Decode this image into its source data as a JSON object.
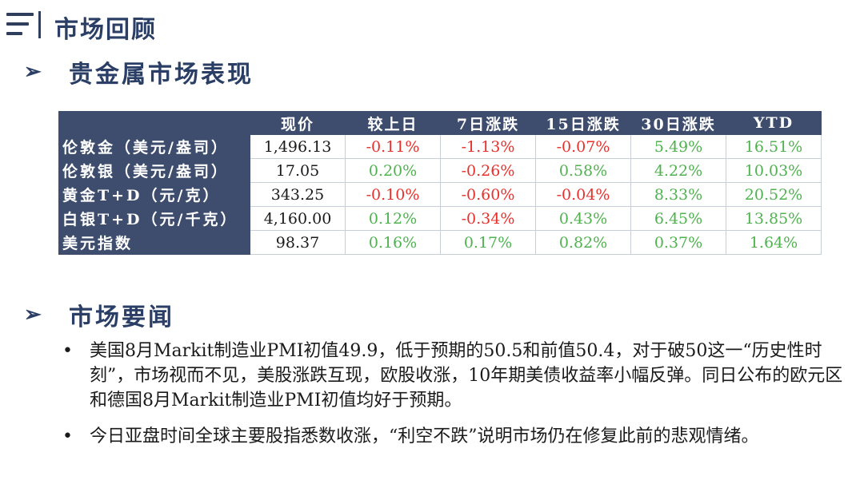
{
  "header": {
    "title": "市场回顾"
  },
  "section1": {
    "arrow": "➢",
    "title": "贵金属市场表现"
  },
  "table": {
    "columns": [
      "现价",
      "较上日",
      "7日涨跌",
      "15日涨跌",
      "30日涨跌",
      "YTD"
    ],
    "rows": [
      {
        "label": "伦敦金（美元/盎司）",
        "price": "1,496.13",
        "c1": "-0.11%",
        "c7": "-1.13%",
        "c15": "-0.07%",
        "c30": "5.49%",
        "ytd": "16.51%"
      },
      {
        "label": "伦敦银（美元/盎司）",
        "price": "17.05",
        "c1": "0.20%",
        "c7": "-0.26%",
        "c15": "0.58%",
        "c30": "4.22%",
        "ytd": "10.03%"
      },
      {
        "label": "黄金T+D（元/克）",
        "price": "343.25",
        "c1": "-0.10%",
        "c7": "-0.60%",
        "c15": "-0.04%",
        "c30": "8.33%",
        "ytd": "20.52%"
      },
      {
        "label": "白银T+D（元/千克）",
        "price": "4,160.00",
        "c1": "0.12%",
        "c7": "-0.34%",
        "c15": "0.43%",
        "c30": "6.45%",
        "ytd": "13.85%"
      },
      {
        "label": "美元指数",
        "price": "98.37",
        "c1": "0.16%",
        "c7": "0.17%",
        "c15": "0.82%",
        "c30": "0.37%",
        "ytd": "1.64%"
      }
    ]
  },
  "colors": {
    "negative": "#e8302c",
    "positive": "#4fb24f",
    "header_bg": "#3e4d6e",
    "title": "#2a3e66"
  },
  "section2": {
    "arrow": "➢",
    "title": "市场要闻"
  },
  "news": {
    "bullet": "•",
    "items": [
      "美国8月Markit制造业PMI初值49.9，低于预期的50.5和前值50.4，对于破50这一“历史性时刻”，市场视而不见，美股涨跌互现，欧股收涨，10年期美债收益率小幅反弹。同日公布的欧元区和德国8月Markit制造业PMI初值均好于预期。",
      "今日亚盘时间全球主要股指悉数收涨，“利空不跌”说明市场仍在修复此前的悲观情绪。"
    ]
  }
}
